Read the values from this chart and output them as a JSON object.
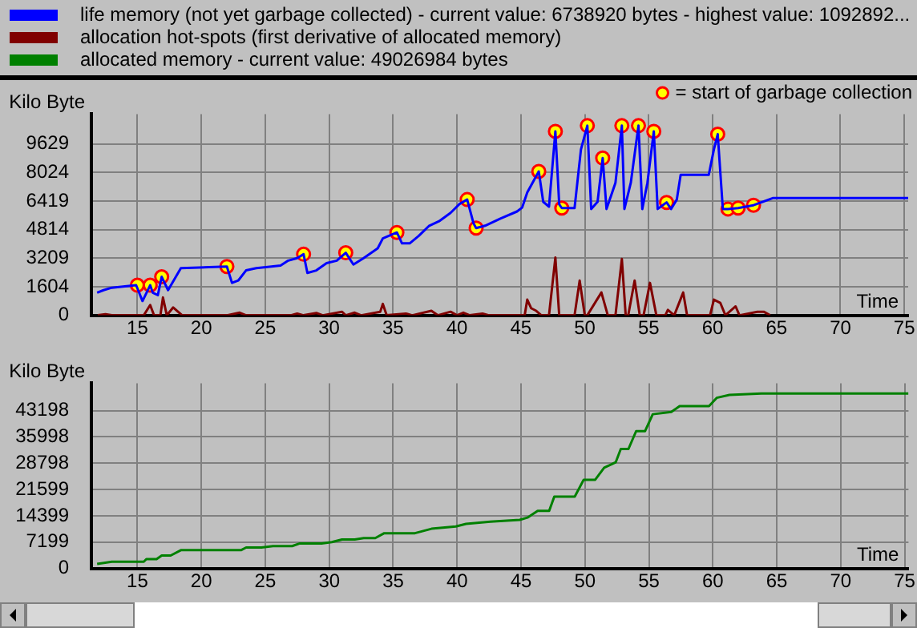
{
  "chart_data": [
    {
      "type": "line",
      "xlabel": "Time",
      "ylabel": "Kilo Byte",
      "xlim": [
        11.4,
        75.3
      ],
      "xticks": [
        15,
        20,
        25,
        30,
        35,
        40,
        45,
        50,
        55,
        60,
        65,
        70,
        75
      ],
      "ylim": [
        0,
        11300
      ],
      "yticks": [
        0,
        1604,
        3209,
        4814,
        6419,
        8024,
        9629
      ],
      "grid": true,
      "legend": "top",
      "series": [
        {
          "name": "life memory (not yet garbage collected) - current value: 6738920 bytes - highest value: 1092892...",
          "color": "#0000ff",
          "x": [
            11.85,
            12.35,
            13.0,
            14.9,
            15.4,
            16.0,
            16.2,
            16.6,
            16.9,
            17.4,
            18.4,
            22.0,
            22.4,
            22.9,
            23.5,
            24.3,
            25.2,
            26.2,
            26.8,
            27.5,
            28.0,
            28.3,
            29.0,
            29.8,
            30.6,
            31.3,
            31.9,
            32.7,
            33.8,
            34.2,
            35.3,
            35.7,
            36.3,
            37.0,
            37.8,
            38.6,
            39.5,
            40.2,
            40.8,
            41.3,
            41.5,
            42.2,
            43.4,
            44.7,
            45.1,
            45.5,
            46.4,
            46.75,
            47.2,
            47.7,
            48.0,
            48.2,
            49.2,
            49.7,
            50.2,
            50.5,
            51.0,
            51.4,
            51.7,
            52.4,
            52.9,
            53.1,
            53.6,
            54.2,
            54.5,
            54.9,
            55.4,
            55.7,
            56.4,
            56.75,
            57.2,
            57.5,
            59.7,
            60.1,
            60.4,
            60.8,
            61.2,
            62.0,
            63.2,
            64.7,
            75.3
          ],
          "values": [
            1270,
            1410,
            1550,
            1690,
            800,
            1690,
            1270,
            1130,
            2160,
            1410,
            2650,
            2740,
            1820,
            1960,
            2520,
            2650,
            2710,
            2790,
            3070,
            3210,
            3430,
            2380,
            2520,
            2930,
            3070,
            3510,
            2850,
            3210,
            3760,
            4320,
            4650,
            4040,
            4040,
            4450,
            5010,
            5280,
            5750,
            6250,
            6500,
            5150,
            4900,
            5030,
            5430,
            5830,
            6050,
            6900,
            8080,
            6370,
            6100,
            10330,
            6230,
            6020,
            6020,
            9310,
            10650,
            5970,
            6370,
            8830,
            5970,
            7440,
            10650,
            5970,
            7440,
            10650,
            5970,
            7440,
            10330,
            5970,
            6340,
            5970,
            6500,
            7890,
            7890,
            9310,
            10170,
            5970,
            5970,
            6020,
            6180,
            6580,
            6580
          ]
        },
        {
          "name": "allocation hot-spots (first derivative of allocated memory)",
          "color": "#800000",
          "x": [
            11.9,
            12.5,
            13,
            15.5,
            16,
            16.3,
            16.8,
            17,
            17.3,
            17.8,
            18.5,
            22,
            23,
            23.5,
            27,
            27.5,
            28,
            29,
            29.5,
            31,
            31.3,
            32,
            32.5,
            34,
            34.2,
            34.5,
            36,
            36.5,
            38,
            38.5,
            39.5,
            40,
            40.5,
            41,
            42,
            42.5,
            45.3,
            45.5,
            45.8,
            46.2,
            46.6,
            47.2,
            47.7,
            48,
            49.2,
            49.6,
            50,
            50.2,
            51.3,
            51.8,
            52.4,
            52.9,
            53.2,
            53.4,
            53.9,
            54.3,
            54.6,
            55.1,
            55.6,
            56.3,
            56.5,
            57,
            57.7,
            58,
            59.8,
            60.1,
            60.6,
            61,
            61.8,
            62.1,
            63.5,
            64,
            64.5
          ],
          "values": [
            0,
            60,
            0,
            0,
            580,
            0,
            0,
            1000,
            0,
            440,
            0,
            0,
            150,
            0,
            0,
            100,
            0,
            130,
            0,
            200,
            0,
            150,
            0,
            200,
            640,
            0,
            100,
            0,
            250,
            0,
            200,
            0,
            150,
            0,
            100,
            0,
            0,
            880,
            400,
            250,
            0,
            0,
            3240,
            0,
            0,
            1950,
            0,
            0,
            1280,
            0,
            0,
            3160,
            0,
            0,
            1950,
            0,
            0,
            1820,
            0,
            0,
            300,
            0,
            1280,
            0,
            0,
            880,
            700,
            0,
            500,
            0,
            200,
            200,
            0
          ]
        },
        {
          "type": "scatter",
          "name": "= start of garbage collection",
          "color": "#ffff00",
          "x": [
            15.0,
            16.0,
            16.9,
            22.0,
            28.0,
            31.3,
            35.3,
            40.8,
            41.5,
            46.4,
            47.7,
            48.2,
            50.2,
            51.4,
            52.9,
            54.2,
            55.4,
            56.4,
            60.4,
            61.2,
            62.0,
            63.2
          ],
          "values": [
            1690,
            1690,
            2160,
            2740,
            3430,
            3510,
            4650,
            6500,
            4900,
            8080,
            10330,
            6020,
            10650,
            8830,
            10650,
            10650,
            10330,
            6340,
            10170,
            5970,
            6020,
            6180
          ]
        }
      ]
    },
    {
      "type": "line",
      "xlabel": "Time",
      "ylabel": "Kilo Byte",
      "xlim": [
        11.4,
        75.3
      ],
      "xticks": [
        15,
        20,
        25,
        30,
        35,
        40,
        45,
        50,
        55,
        60,
        65,
        70,
        75
      ],
      "ylim": [
        0,
        50700
      ],
      "yticks": [
        0,
        7199,
        14399,
        21599,
        28798,
        35998,
        43198
      ],
      "grid": true,
      "legend": "top",
      "series": [
        {
          "name": "allocated memory - current value: 49026984 bytes",
          "color": "#008000",
          "x": [
            11.85,
            13.0,
            15.5,
            15.7,
            16.5,
            16.9,
            17.6,
            18.4,
            23.1,
            23.5,
            24.7,
            25.6,
            27.1,
            27.7,
            29.4,
            30.2,
            31.0,
            32.0,
            32.7,
            33.6,
            34.3,
            36.7,
            38.0,
            39.9,
            40.7,
            42.6,
            44.9,
            45.5,
            46.3,
            47.2,
            47.6,
            49.2,
            49.9,
            50.8,
            51.5,
            52.4,
            52.8,
            53.4,
            54.0,
            54.7,
            55.3,
            56.75,
            57.4,
            59.7,
            60.3,
            61.3,
            63.8,
            75.3
          ],
          "values": [
            1220,
            1830,
            1830,
            2560,
            2560,
            3540,
            3540,
            5000,
            5000,
            5730,
            5730,
            6100,
            6100,
            6830,
            6830,
            7200,
            7930,
            7930,
            8300,
            8300,
            9640,
            9640,
            10860,
            11470,
            12200,
            12810,
            13300,
            13910,
            15740,
            15740,
            19640,
            19640,
            24280,
            24280,
            27570,
            29040,
            32700,
            32700,
            37580,
            37580,
            42210,
            42820,
            44410,
            44410,
            46700,
            47500,
            47900,
            47900
          ]
        }
      ]
    }
  ]
}
